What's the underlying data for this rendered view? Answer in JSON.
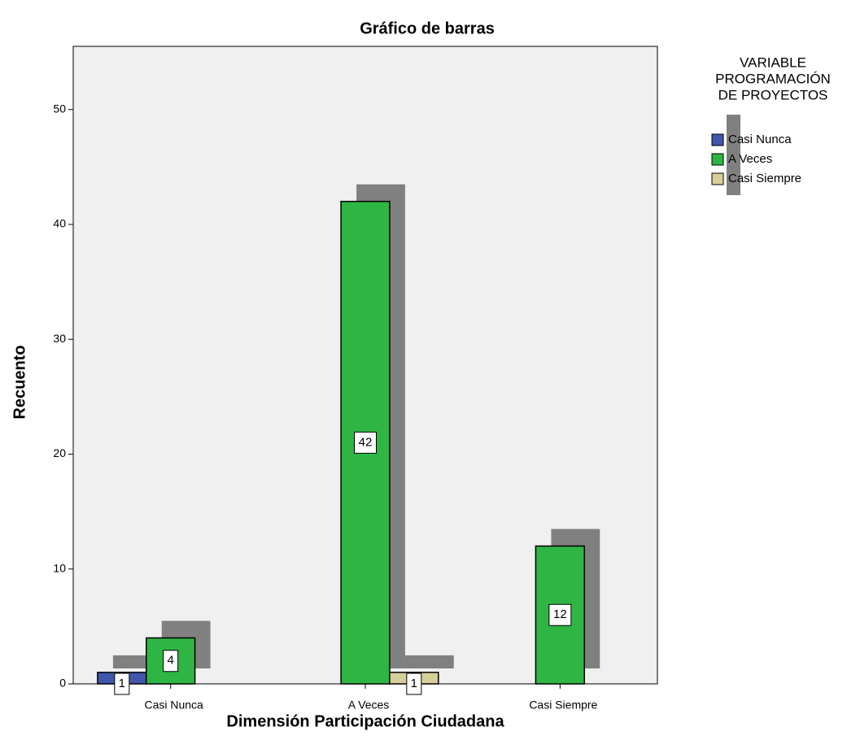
{
  "chart_data": {
    "type": "bar",
    "title": "Gráfico de barras",
    "x_label": "Dimensión Participación Ciudadana",
    "y_label": "Recuento",
    "legend_title": [
      "VARIABLE",
      "PROGRAMACIÓN",
      "DE PROYECTOS"
    ],
    "categories": [
      "Casi Nunca",
      "A Veces",
      "Casi Siempre"
    ],
    "series": [
      {
        "name": "Casi Nunca",
        "color": "#3f57ab",
        "values": [
          1,
          null,
          null
        ]
      },
      {
        "name": "A Veces",
        "color": "#2fb544",
        "values": [
          4,
          42,
          12
        ]
      },
      {
        "name": "Casi Siempre",
        "color": "#d6cf99",
        "values": [
          null,
          1,
          null
        ]
      }
    ],
    "ylim": [
      0,
      55.5
    ],
    "yticks": [
      0,
      10,
      20,
      30,
      40,
      50
    ],
    "shadow_color": "#808080",
    "background": "#f0f0f0"
  }
}
